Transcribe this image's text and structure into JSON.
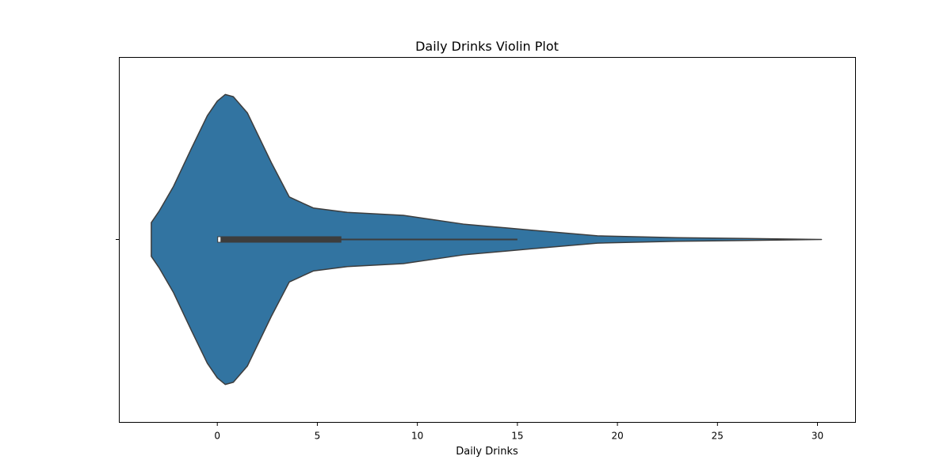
{
  "chart_data": {
    "type": "violin",
    "title": "Daily Drinks Violin Plot",
    "xlabel": "Daily Drinks",
    "ylabel": "",
    "xlim": [
      -4.9,
      31.9
    ],
    "x_ticks": [
      0,
      5,
      10,
      15,
      20,
      25,
      30
    ],
    "grid": false,
    "orientation": "horizontal",
    "fill_color": "#3274a1",
    "edge_color": "#3d3d3d",
    "density_profile": [
      {
        "x": -3.3,
        "w": 0.115
      },
      {
        "x": -2.9,
        "w": 0.195
      },
      {
        "x": -2.2,
        "w": 0.36
      },
      {
        "x": -1.3,
        "w": 0.62
      },
      {
        "x": -0.5,
        "w": 0.845
      },
      {
        "x": 0.0,
        "w": 0.945
      },
      {
        "x": 0.4,
        "w": 0.99
      },
      {
        "x": 0.8,
        "w": 0.975
      },
      {
        "x": 1.5,
        "w": 0.865
      },
      {
        "x": 2.7,
        "w": 0.525
      },
      {
        "x": 3.6,
        "w": 0.29
      },
      {
        "x": 4.8,
        "w": 0.215
      },
      {
        "x": 6.5,
        "w": 0.185
      },
      {
        "x": 9.3,
        "w": 0.165
      },
      {
        "x": 12.3,
        "w": 0.105
      },
      {
        "x": 15.6,
        "w": 0.065
      },
      {
        "x": 19.0,
        "w": 0.025
      },
      {
        "x": 23.0,
        "w": 0.012
      },
      {
        "x": 26.5,
        "w": 0.007
      },
      {
        "x": 30.2,
        "w": 0.0
      }
    ],
    "box": {
      "q1": 0.0,
      "median": 0.1,
      "q3": 6.2,
      "whisker_low": 0.0,
      "whisker_high": 15.0
    }
  }
}
